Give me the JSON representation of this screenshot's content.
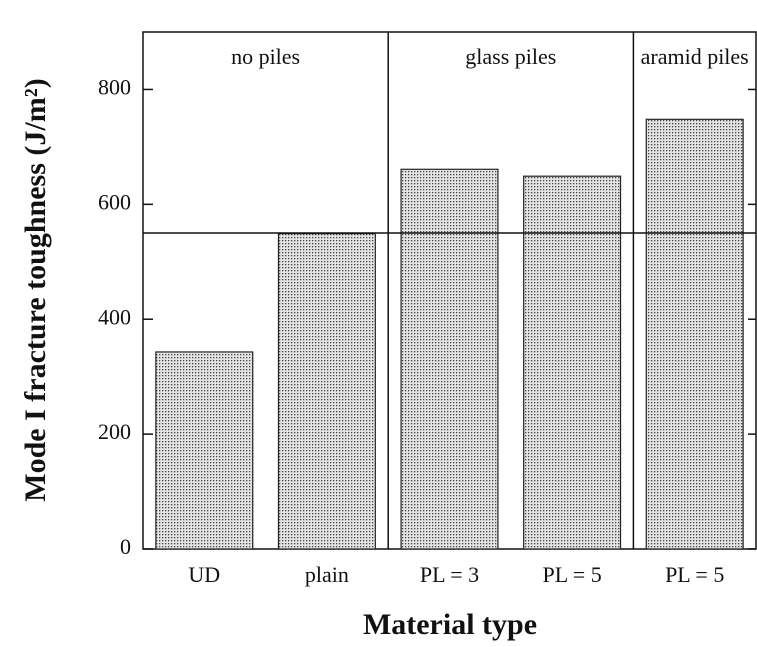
{
  "chart_data": {
    "type": "bar",
    "categories": [
      "UD",
      "plain",
      "PL = 3",
      "PL = 5",
      "PL = 5"
    ],
    "values": [
      343,
      549,
      661,
      649,
      748
    ],
    "group_labels": [
      "no piles",
      "glass piles",
      "aramid piles"
    ],
    "reference_line": 550,
    "ylim": [
      0,
      900
    ],
    "yticks": [
      0,
      200,
      400,
      600,
      800
    ],
    "xlabel": "Material type",
    "ylabel": "Mode I fracture toughness (J/m²)",
    "color": "#bcbcbc"
  }
}
